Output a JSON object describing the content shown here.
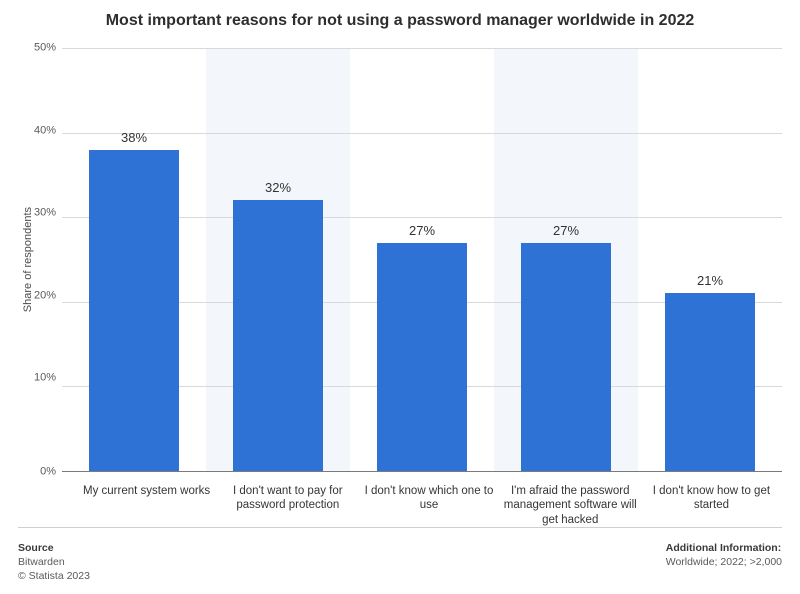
{
  "title": "Most important reasons for not using a password manager worldwide in 2022",
  "title_fontsize": 16,
  "ylabel": "Share of respondents",
  "ylabel_fontsize": 11,
  "chart": {
    "type": "bar",
    "ylim_max": 50,
    "ytick_step": 10,
    "yticks": [
      "50%",
      "40%",
      "30%",
      "20%",
      "10%",
      "0%"
    ],
    "ytick_fontsize": 11,
    "grid_color": "#d9d9d9",
    "alt_band_color": "#f3f6fa",
    "background_color": "#ffffff",
    "bar_color": "#2f72d6",
    "bar_width_ratio": 0.62,
    "value_label_fontsize": 13,
    "x_label_fontsize": 11.5,
    "categories": [
      {
        "label": "My current system works",
        "value": 38,
        "value_label": "38%"
      },
      {
        "label": "I don't want to pay for password protection",
        "value": 32,
        "value_label": "32%"
      },
      {
        "label": "I don't know which one to use",
        "value": 27,
        "value_label": "27%"
      },
      {
        "label": "I'm afraid the password management software will get hacked",
        "value": 27,
        "value_label": "27%"
      },
      {
        "label": "I don't know how to get started",
        "value": 21,
        "value_label": "21%"
      }
    ]
  },
  "footer": {
    "source_label": "Source",
    "source_value": "Bitwarden",
    "copyright": "© Statista 2023",
    "addl_label": "Additional Information:",
    "addl_value": "Worldwide; 2022; >2,000",
    "fontsize": 10.5
  }
}
